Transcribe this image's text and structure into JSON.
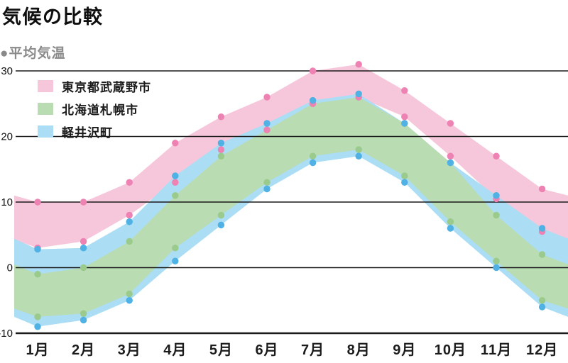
{
  "title": "気候の比較",
  "subtitle": "●平均気温",
  "chart_data": {
    "type": "area",
    "subtype": "range-band (monthly high/low temperature, °C)",
    "categories": [
      "1月",
      "2月",
      "3月",
      "4月",
      "5月",
      "6月",
      "7月",
      "8月",
      "9月",
      "10月",
      "11月",
      "12月"
    ],
    "y_ticks": [
      30,
      20,
      10,
      0,
      -10
    ],
    "y_tick_labels": [
      "30",
      "20",
      "10",
      "0",
      "-10"
    ],
    "ylim": [
      -10,
      30
    ],
    "grid": true,
    "legend_position": "top-left-inside",
    "note_edges": "bands wrap half a month past Jan and Dec to the plot edges",
    "series": [
      {
        "name": "東京都武蔵野市",
        "band_color": "#F6C7DB",
        "dot_color": "#EE82B2",
        "high": [
          10,
          10,
          13,
          19,
          23,
          26,
          30,
          31,
          27,
          22,
          17,
          12
        ],
        "low": [
          3,
          4,
          8,
          13,
          18,
          21,
          25,
          26,
          23,
          17,
          10.5,
          5.5
        ]
      },
      {
        "name": "北海道札幌市",
        "band_color": "#B9DCB2",
        "dot_color": "#9BCB8C",
        "high": [
          -1,
          0,
          4,
          11,
          17,
          21,
          25,
          26,
          22,
          16,
          8,
          2
        ],
        "low": [
          -7.5,
          -7,
          -4,
          3,
          8,
          13,
          17,
          18,
          14,
          7,
          1,
          -5
        ]
      },
      {
        "name": "軽井沢町",
        "band_color": "#ABDDF4",
        "dot_color": "#4FB1E4",
        "high": [
          2.8,
          3,
          7,
          14,
          19,
          22,
          25.5,
          26.5,
          22,
          16,
          11,
          6
        ],
        "low": [
          -9,
          -8,
          -5,
          1,
          6.5,
          12,
          16,
          17,
          13,
          6,
          0,
          -6
        ]
      }
    ],
    "grid_color": "#1a1a1a",
    "axis_color": "#1a1a1a"
  }
}
